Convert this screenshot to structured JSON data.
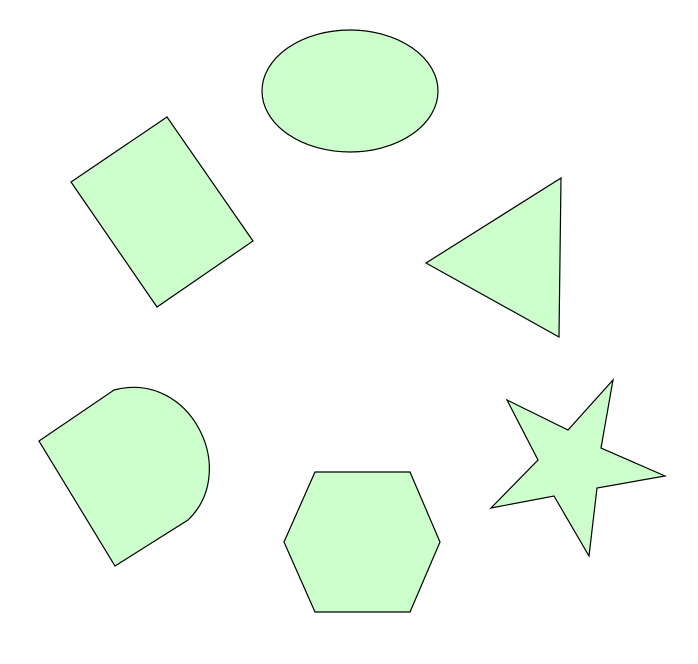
{
  "canvas": {
    "background": "#ffffff"
  },
  "style": {
    "shape_fill": "#ccffcc",
    "shape_stroke": "#000000"
  },
  "shapes": [
    {
      "kind": "ellipse"
    },
    {
      "kind": "rectangle"
    },
    {
      "kind": "triangle"
    },
    {
      "kind": "d-shape"
    },
    {
      "kind": "hexagon"
    },
    {
      "kind": "star"
    }
  ]
}
